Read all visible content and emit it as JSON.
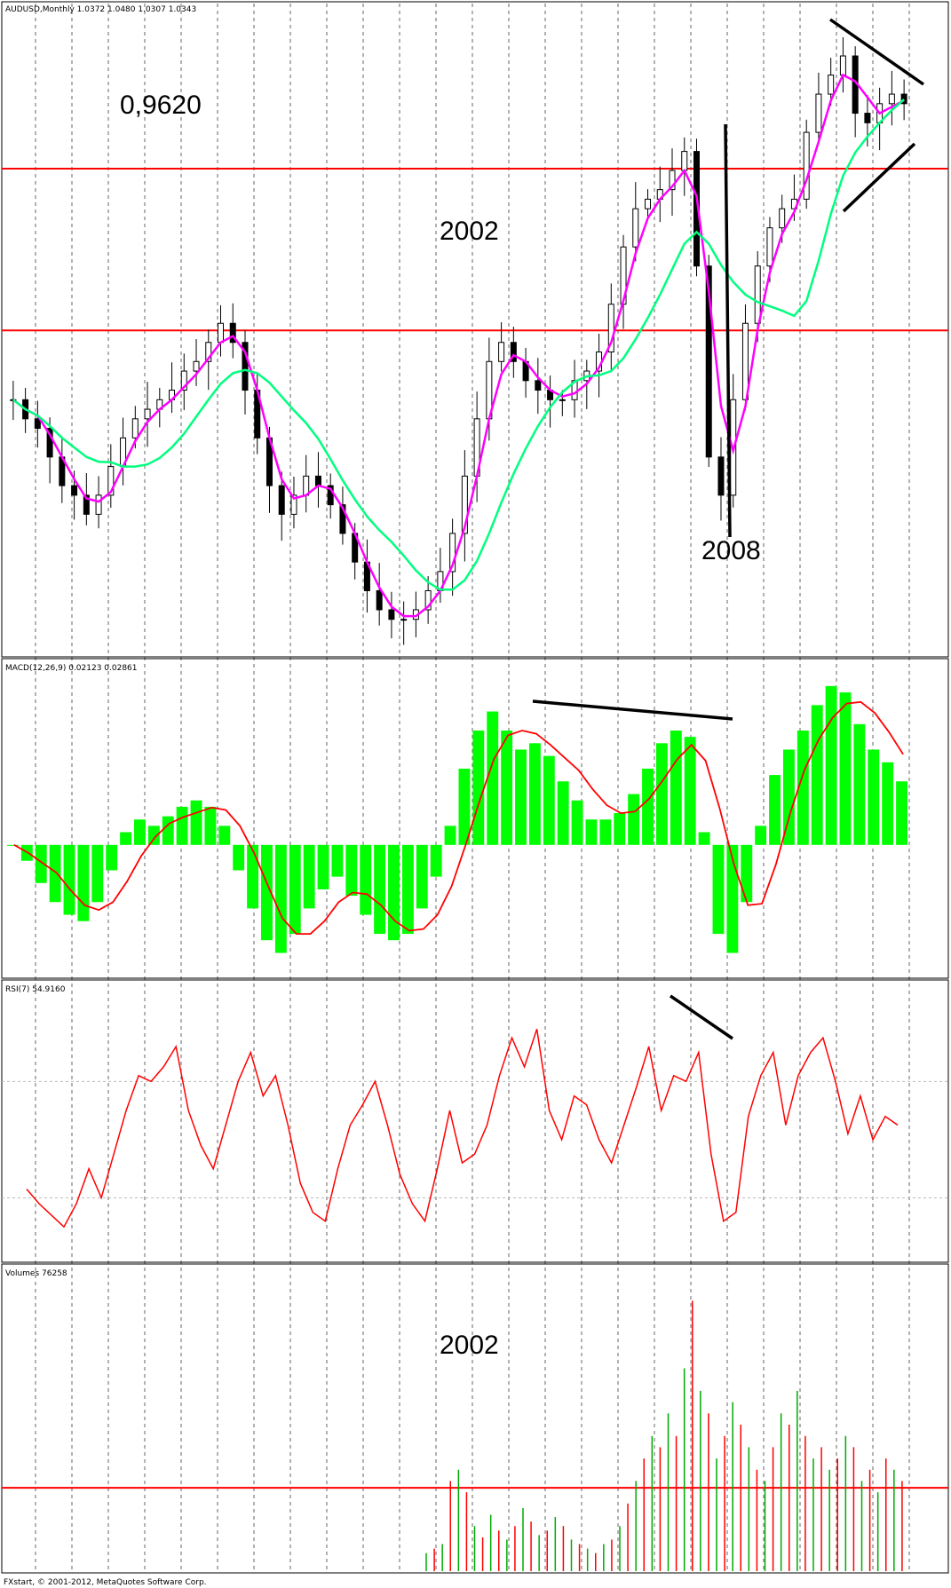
{
  "panels": {
    "price_header": "AUDUSD,Monthly  1.0372 1.0480 1.0307 1.0343",
    "macd_header": "MACD(12,26,9) 0.02123 0.02861",
    "rsi_header": "RSI(7) 54.9160",
    "volume_header": "Volumes 76258"
  },
  "annotations": {
    "price_level": "0,9620",
    "year_top": "2002",
    "year_crash": "2008",
    "year_volume": "2002"
  },
  "footer": "FXstart, © 2001-2012, MetaQuotes Software Corp.",
  "colors": {
    "up_candle": "#000000",
    "ma_fast": "#ff00ff",
    "ma_slow": "#00ff7f",
    "macd_hist": "#00ff00",
    "signal": "#ff0000",
    "rsi": "#ff0000",
    "level_line": "#ff0000",
    "vol_up": "#00aa00",
    "vol_down": "#ff0000",
    "grid": "#000000"
  },
  "chart_data": [
    {
      "type": "candlestick",
      "title": "AUDUSD,Monthly",
      "ohlc_last": {
        "open": 1.0372,
        "high": 1.048,
        "low": 1.0307,
        "close": 1.0343
      },
      "approx_close_series": [
        0.72,
        0.7,
        0.69,
        0.66,
        0.63,
        0.62,
        0.6,
        0.62,
        0.65,
        0.68,
        0.7,
        0.71,
        0.72,
        0.73,
        0.75,
        0.76,
        0.78,
        0.8,
        0.78,
        0.73,
        0.68,
        0.63,
        0.6,
        0.62,
        0.64,
        0.63,
        0.61,
        0.58,
        0.55,
        0.52,
        0.5,
        0.49,
        0.49,
        0.5,
        0.52,
        0.54,
        0.58,
        0.64,
        0.7,
        0.76,
        0.78,
        0.76,
        0.74,
        0.73,
        0.72,
        0.72,
        0.74,
        0.75,
        0.77,
        0.82,
        0.88,
        0.92,
        0.93,
        0.94,
        0.96,
        0.98,
        0.86,
        0.66,
        0.62,
        0.72,
        0.8,
        0.86,
        0.9,
        0.92,
        0.93,
        1.0,
        1.04,
        1.06,
        1.08,
        1.02,
        1.01,
        1.03,
        1.04,
        1.03
      ],
      "horizontal_levels": [
        0.962,
        0.7925
      ],
      "series": [
        {
          "name": "",
          "kind": "moving average fast"
        },
        {
          "name": "",
          "kind": "moving average slow"
        }
      ]
    },
    {
      "type": "bar",
      "title": "MACD(12,26,9)",
      "main": 0.02123,
      "signal": 0.02861,
      "histogram": [
        0.0,
        -0.005,
        -0.012,
        -0.018,
        -0.022,
        -0.024,
        -0.018,
        -0.008,
        0.004,
        0.008,
        0.006,
        0.009,
        0.012,
        0.014,
        0.012,
        0.006,
        -0.008,
        -0.02,
        -0.03,
        -0.034,
        -0.028,
        -0.02,
        -0.014,
        -0.01,
        -0.016,
        -0.022,
        -0.028,
        -0.03,
        -0.028,
        -0.02,
        -0.01,
        0.006,
        0.024,
        0.036,
        0.042,
        0.036,
        0.03,
        0.032,
        0.028,
        0.02,
        0.014,
        0.008,
        0.008,
        0.01,
        0.016,
        0.024,
        0.032,
        0.036,
        0.034,
        0.004,
        -0.028,
        -0.034,
        -0.018,
        0.006,
        0.022,
        0.03,
        0.036,
        0.044,
        0.05,
        0.048,
        0.038,
        0.03,
        0.026,
        0.02
      ]
    },
    {
      "type": "line",
      "title": "RSI(7)",
      "value": 54.916,
      "levels": [
        70,
        30
      ],
      "values": [
        33,
        28,
        24,
        20,
        28,
        40,
        30,
        45,
        60,
        72,
        70,
        75,
        82,
        60,
        48,
        40,
        55,
        70,
        80,
        65,
        72,
        55,
        35,
        25,
        22,
        40,
        55,
        62,
        70,
        55,
        38,
        28,
        22,
        40,
        60,
        42,
        45,
        55,
        72,
        85,
        75,
        88,
        60,
        50,
        65,
        62,
        50,
        42,
        55,
        68,
        82,
        60,
        72,
        70,
        80,
        45,
        22,
        25,
        58,
        72,
        80,
        55,
        72,
        80,
        85,
        70,
        52,
        65,
        50,
        58,
        55
      ]
    },
    {
      "type": "bar",
      "title": "Volumes",
      "value": 76258,
      "level_line": 37000,
      "values": [
        8000,
        10000,
        12000,
        40000,
        45000,
        35000,
        20000,
        15000,
        25000,
        18000,
        14000,
        20000,
        28000,
        22000,
        16000,
        18000,
        24000,
        20000,
        14000,
        12000,
        10000,
        8000,
        12000,
        14000,
        20000,
        30000,
        40000,
        50000,
        60000,
        55000,
        70000,
        60000,
        90000,
        120000,
        80000,
        70000,
        50000,
        60000,
        75000,
        65000,
        55000,
        45000,
        40000,
        55000,
        70000,
        65000,
        80000,
        60000,
        50000,
        55000,
        45000,
        50000,
        60000,
        55000,
        40000,
        45000,
        35000,
        50000,
        45000,
        40000
      ]
    }
  ]
}
